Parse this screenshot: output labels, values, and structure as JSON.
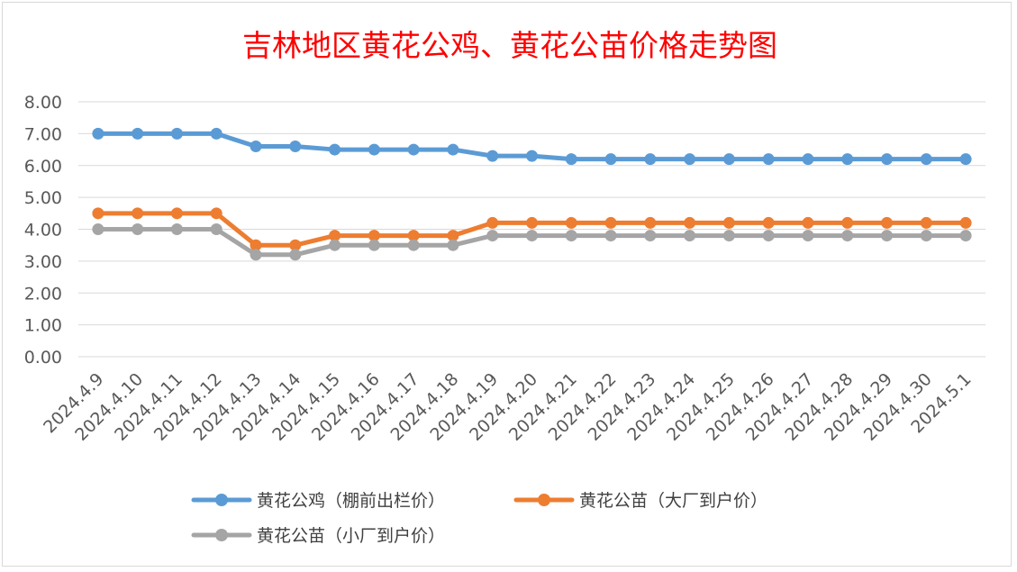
{
  "chart_data": {
    "type": "line",
    "title": "吉林地区黄花公鸡、黄花公苗价格走势图",
    "xlabel": "",
    "ylabel": "",
    "ylim": [
      0,
      8
    ],
    "y_ticks": [
      "0.00",
      "1.00",
      "2.00",
      "3.00",
      "4.00",
      "5.00",
      "6.00",
      "7.00",
      "8.00"
    ],
    "grid": true,
    "legend_position": "bottom",
    "categories": [
      "2024.4.9",
      "2024.4.10",
      "2024.4.11",
      "2024.4.12",
      "2024.4.13",
      "2024.4.14",
      "2024.4.15",
      "2024.4.16",
      "2024.4.17",
      "2024.4.18",
      "2024.4.19",
      "2024.4.20",
      "2024.4.21",
      "2024.4.22",
      "2024.4.23",
      "2024.4.24",
      "2024.4.25",
      "2024.4.26",
      "2024.4.27",
      "2024.4.28",
      "2024.4.29",
      "2024.4.30",
      "2024.5.1"
    ],
    "series": [
      {
        "name": "黄花公鸡（棚前出栏价）",
        "color": "#5b9bd5",
        "values": [
          7.0,
          7.0,
          7.0,
          7.0,
          6.6,
          6.6,
          6.5,
          6.5,
          6.5,
          6.5,
          6.3,
          6.3,
          6.2,
          6.2,
          6.2,
          6.2,
          6.2,
          6.2,
          6.2,
          6.2,
          6.2,
          6.2,
          6.2
        ]
      },
      {
        "name": "黄花公苗（大厂到户价）",
        "color": "#ed7d31",
        "values": [
          4.5,
          4.5,
          4.5,
          4.5,
          3.5,
          3.5,
          3.8,
          3.8,
          3.8,
          3.8,
          4.2,
          4.2,
          4.2,
          4.2,
          4.2,
          4.2,
          4.2,
          4.2,
          4.2,
          4.2,
          4.2,
          4.2,
          4.2
        ]
      },
      {
        "name": "黄花公苗（小厂到户价）",
        "color": "#a5a5a5",
        "values": [
          4.0,
          4.0,
          4.0,
          4.0,
          3.2,
          3.2,
          3.5,
          3.5,
          3.5,
          3.5,
          3.8,
          3.8,
          3.8,
          3.8,
          3.8,
          3.8,
          3.8,
          3.8,
          3.8,
          3.8,
          3.8,
          3.8,
          3.8
        ]
      }
    ]
  },
  "colors": {
    "title": "#ff0000",
    "gridline": "#d9d9d9",
    "tick_text": "#595959",
    "legend_text": "#404040"
  }
}
